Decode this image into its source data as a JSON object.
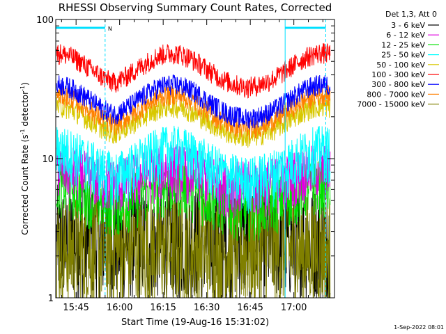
{
  "chart_data": {
    "type": "line",
    "title": "RHESSI Observing Summary Count Rates, Corrected",
    "xlabel": "Start Time (19-Aug-16 15:31:02)",
    "ylabel_main": "Corrected Count Rate (s",
    "ylabel_sup1": "-1",
    "ylabel_mid": " detector",
    "ylabel_sup2": "-1",
    "ylabel_end": ")",
    "yscale": "log",
    "ylim": [
      1,
      100
    ],
    "xlim_minutes": [
      "15:38",
      "17:12"
    ],
    "x_ticks": [
      "15:45",
      "16:00",
      "16:15",
      "16:30",
      "16:45",
      "17:00"
    ],
    "y_ticks": [
      "1",
      "10",
      "100"
    ],
    "legend_header": "Det 1,3, Att 0",
    "legend_position": "top-right",
    "timestamp": "1-Sep-2022 08:01",
    "night_marker_label": "N",
    "night_intervals": [
      [
        "15:38",
        "15:55"
      ],
      [
        "16:57",
        "17:11"
      ]
    ],
    "series": [
      {
        "name": "3 - 6 keV",
        "color": "#000000",
        "base": 2.5,
        "amplitude": 0,
        "peaks": [],
        "values_hint": "noisy 1.6-4.5"
      },
      {
        "name": "6 - 12 keV",
        "color": "#e000e0",
        "base": 6.5,
        "amplitude": 0.35,
        "peaks": [
          "15:38",
          "16:18",
          "17:10"
        ],
        "values_hint": "6-10"
      },
      {
        "name": "12 - 25 keV",
        "color": "#00e000",
        "base": 4.5,
        "amplitude": 0.5,
        "peaks": [
          "15:38",
          "16:18",
          "17:10"
        ],
        "values_hint": "3-9"
      },
      {
        "name": "25 - 50 keV",
        "color": "#00ffff",
        "base": 7,
        "amplitude": 0.7,
        "peaks": [
          "15:38",
          "16:18",
          "17:10"
        ],
        "values_hint": "5-14"
      },
      {
        "name": "50 - 100 keV",
        "color": "#d8c800",
        "base": 14,
        "amplitude": 0.7,
        "peaks": [
          "15:38",
          "16:18",
          "17:10"
        ],
        "values_hint": "12-28"
      },
      {
        "name": "100 - 300 keV",
        "color": "#ff0000",
        "base": 32,
        "amplitude": 0.8,
        "peaks": [
          "15:38",
          "16:18",
          "17:10"
        ],
        "values_hint": "30-70"
      },
      {
        "name": "300 - 800 keV",
        "color": "#0000ff",
        "base": 19,
        "amplitude": 0.8,
        "peaks": [
          "15:38",
          "16:18",
          "17:10"
        ],
        "values_hint": "18-44"
      },
      {
        "name": "800 - 7000 keV",
        "color": "#ff8000",
        "base": 16,
        "amplitude": 0.8,
        "peaks": [
          "15:38",
          "16:18",
          "17:10"
        ],
        "values_hint": "15-38"
      },
      {
        "name": "7000 - 15000 keV",
        "color": "#808000",
        "base": 2.2,
        "amplitude": 0,
        "peaks": [],
        "values_hint": "noisy 1-3.5"
      }
    ]
  }
}
